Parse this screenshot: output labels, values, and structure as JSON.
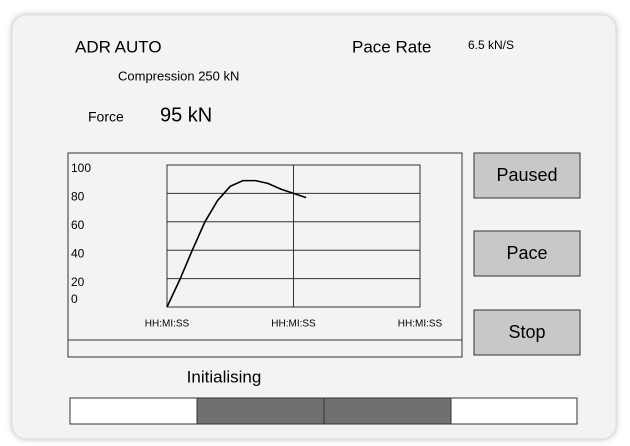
{
  "header": {
    "mode": "ADR AUTO",
    "pace_rate_label": "Pace Rate",
    "pace_rate_value": "6.5 kN/S",
    "compression": "Compression 250 kN",
    "force_label": "Force",
    "force_value": "95 kN"
  },
  "chart": {
    "type": "line",
    "ylim": [
      0,
      100
    ],
    "yticks": [
      0,
      20,
      40,
      60,
      80,
      100
    ],
    "xlim": [
      0,
      2
    ],
    "xticks": [
      {
        "value": 0,
        "label": "HH:MI:SS"
      },
      {
        "value": 1,
        "label": "HH:MI:SS"
      },
      {
        "value": 2,
        "label": "HH:MI:SS"
      }
    ],
    "x": [
      0,
      0.1,
      0.2,
      0.3,
      0.4,
      0.5,
      0.6,
      0.7,
      0.8,
      0.9,
      1.0,
      1.1
    ],
    "values": [
      0,
      19,
      40,
      60,
      75,
      85,
      89,
      89,
      87,
      83,
      80,
      77
    ],
    "color": "#000000",
    "grid": true
  },
  "buttons": [
    "Paused",
    "Pace",
    "Stop"
  ],
  "status": "Initialising"
}
